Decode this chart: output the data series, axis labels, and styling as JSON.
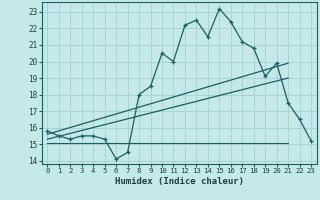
{
  "xlabel": "Humidex (Indice chaleur)",
  "bg_color": "#c5e8e8",
  "grid_color": "#a8d4d4",
  "line_color": "#1a6060",
  "xlim": [
    -0.5,
    23.5
  ],
  "ylim": [
    13.8,
    23.6
  ],
  "xticks": [
    0,
    1,
    2,
    3,
    4,
    5,
    6,
    7,
    8,
    9,
    10,
    11,
    12,
    13,
    14,
    15,
    16,
    17,
    18,
    19,
    20,
    21,
    22,
    23
  ],
  "yticks": [
    14,
    15,
    16,
    17,
    18,
    19,
    20,
    21,
    22,
    23
  ],
  "main_x": [
    0,
    1,
    2,
    3,
    4,
    5,
    6,
    7,
    8,
    9,
    10,
    11,
    12,
    13,
    14,
    15,
    16,
    17,
    18,
    19,
    20,
    21,
    22,
    23
  ],
  "main_y": [
    15.8,
    15.5,
    15.3,
    15.5,
    15.5,
    15.3,
    14.1,
    14.5,
    18.0,
    18.5,
    20.5,
    20.0,
    22.2,
    22.5,
    21.5,
    23.2,
    22.4,
    21.2,
    20.8,
    19.1,
    19.9,
    17.5,
    16.5,
    15.2
  ],
  "line1_x": [
    0,
    21
  ],
  "line1_y": [
    15.6,
    19.9
  ],
  "line2_x": [
    0,
    21
  ],
  "line2_y": [
    15.3,
    19.0
  ],
  "flat_line_x": [
    0,
    21
  ],
  "flat_line_y": [
    15.1,
    15.1
  ]
}
